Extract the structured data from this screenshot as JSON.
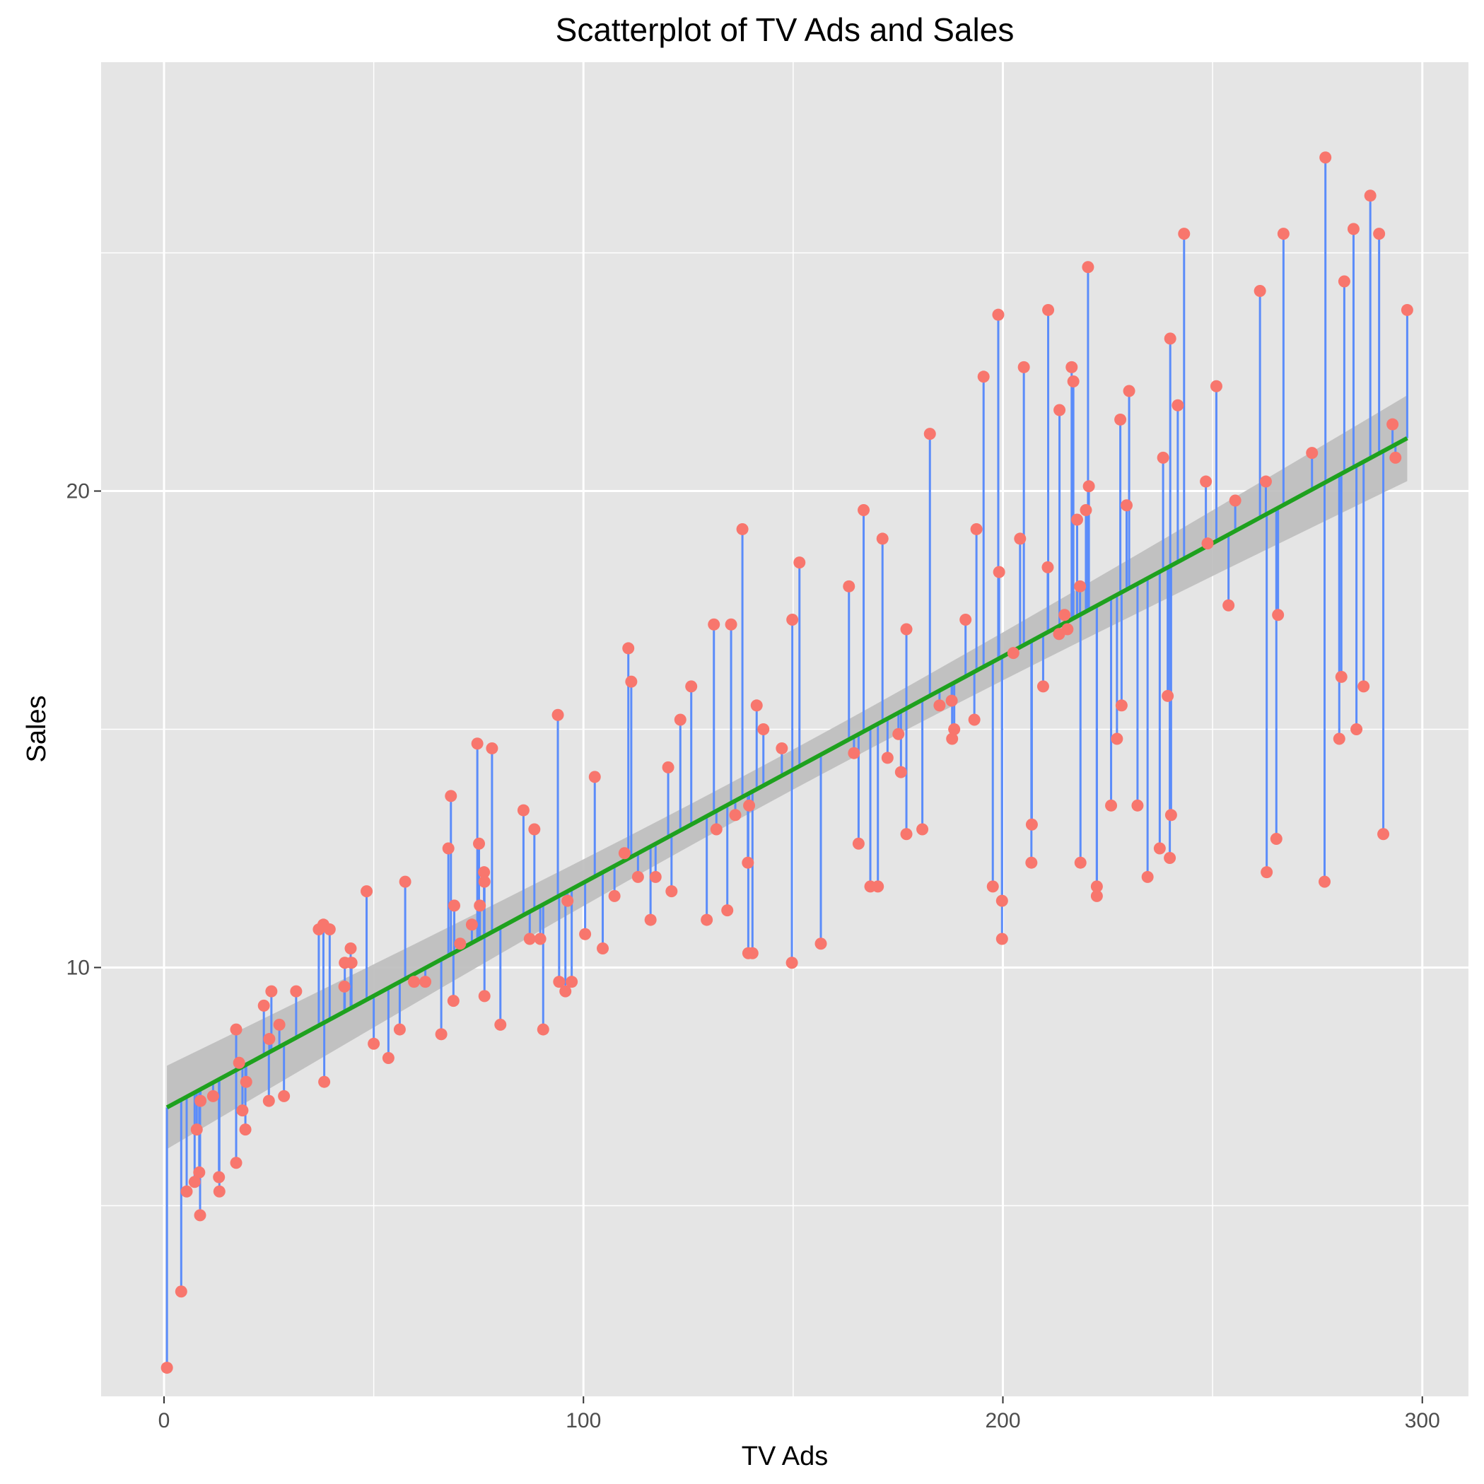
{
  "chart_data": {
    "type": "scatter",
    "title": "Scatterplot of TV Ads and Sales",
    "xlabel": "TV Ads",
    "ylabel": "Sales",
    "xlim": [
      -15,
      311
    ],
    "ylim": [
      1,
      29
    ],
    "xticks": [
      0,
      100,
      200,
      300
    ],
    "yticks": [
      10,
      20
    ],
    "grid": true,
    "background": "#e5e5e5",
    "colors": {
      "points": "#f8766d",
      "residuals": "#5b8cfa",
      "fit": "#1ea11e",
      "ribbon": "#bdbdbd",
      "grid": "#ffffff"
    },
    "fit": {
      "intercept": 7.03,
      "slope": 0.0475,
      "x_range": [
        0.7,
        296.4
      ]
    },
    "ribbon": {
      "lower_start": 6.2,
      "upper_start": 7.95,
      "lower_end": 20.25,
      "upper_end": 22.05
    },
    "points": [
      [
        0.7,
        1.6
      ],
      [
        4.1,
        3.2
      ],
      [
        5.4,
        5.3
      ],
      [
        7.3,
        5.5
      ],
      [
        7.8,
        6.6
      ],
      [
        8.4,
        5.7
      ],
      [
        8.6,
        4.8
      ],
      [
        8.7,
        7.2
      ],
      [
        11.7,
        7.3
      ],
      [
        13.1,
        5.6
      ],
      [
        13.2,
        5.3
      ],
      [
        17.2,
        5.9
      ],
      [
        17.2,
        8.7
      ],
      [
        17.9,
        8.0
      ],
      [
        18.7,
        7.0
      ],
      [
        19.4,
        6.6
      ],
      [
        19.6,
        7.6
      ],
      [
        23.8,
        9.2
      ],
      [
        25.0,
        7.2
      ],
      [
        25.1,
        8.5
      ],
      [
        25.6,
        9.5
      ],
      [
        27.5,
        8.8
      ],
      [
        28.6,
        7.3
      ],
      [
        31.5,
        9.5
      ],
      [
        36.9,
        10.8
      ],
      [
        38.0,
        10.9
      ],
      [
        38.2,
        7.6
      ],
      [
        39.5,
        10.8
      ],
      [
        43.0,
        9.6
      ],
      [
        43.1,
        10.1
      ],
      [
        44.5,
        10.4
      ],
      [
        44.7,
        10.1
      ],
      [
        48.3,
        11.6
      ],
      [
        50.0,
        8.4
      ],
      [
        53.5,
        8.1
      ],
      [
        56.2,
        8.7
      ],
      [
        57.5,
        11.8
      ],
      [
        59.6,
        9.7
      ],
      [
        62.3,
        9.7
      ],
      [
        66.1,
        8.6
      ],
      [
        67.8,
        12.5
      ],
      [
        68.4,
        13.6
      ],
      [
        69.0,
        9.3
      ],
      [
        69.2,
        11.3
      ],
      [
        70.6,
        10.5
      ],
      [
        73.4,
        10.9
      ],
      [
        74.7,
        14.7
      ],
      [
        75.1,
        12.6
      ],
      [
        75.3,
        11.3
      ],
      [
        76.3,
        12.0
      ],
      [
        76.4,
        9.4
      ],
      [
        76.4,
        11.8
      ],
      [
        78.2,
        14.6
      ],
      [
        80.2,
        8.8
      ],
      [
        85.7,
        13.3
      ],
      [
        87.2,
        10.6
      ],
      [
        88.3,
        12.9
      ],
      [
        89.7,
        10.6
      ],
      [
        90.4,
        8.7
      ],
      [
        93.9,
        15.3
      ],
      [
        94.2,
        9.7
      ],
      [
        95.7,
        9.5
      ],
      [
        96.2,
        11.4
      ],
      [
        97.2,
        9.7
      ],
      [
        100.4,
        10.7
      ],
      [
        102.7,
        14.0
      ],
      [
        104.6,
        10.4
      ],
      [
        107.4,
        11.5
      ],
      [
        109.8,
        12.4
      ],
      [
        110.7,
        16.7
      ],
      [
        111.4,
        16.0
      ],
      [
        113.0,
        11.9
      ],
      [
        116.0,
        11.0
      ],
      [
        117.2,
        11.9
      ],
      [
        120.2,
        14.2
      ],
      [
        121.0,
        11.6
      ],
      [
        123.1,
        15.2
      ],
      [
        125.7,
        15.9
      ],
      [
        129.4,
        11.0
      ],
      [
        131.1,
        17.2
      ],
      [
        131.7,
        12.9
      ],
      [
        134.3,
        11.2
      ],
      [
        135.2,
        17.2
      ],
      [
        136.2,
        13.2
      ],
      [
        137.9,
        19.2
      ],
      [
        139.2,
        12.2
      ],
      [
        139.3,
        10.3
      ],
      [
        139.5,
        13.4
      ],
      [
        140.3,
        10.3
      ],
      [
        141.3,
        15.5
      ],
      [
        142.9,
        15.0
      ],
      [
        147.3,
        14.6
      ],
      [
        149.7,
        10.1
      ],
      [
        149.8,
        17.3
      ],
      [
        151.5,
        18.5
      ],
      [
        156.6,
        10.5
      ],
      [
        163.3,
        18.0
      ],
      [
        164.5,
        14.5
      ],
      [
        165.6,
        12.6
      ],
      [
        166.8,
        19.6
      ],
      [
        168.4,
        11.7
      ],
      [
        170.2,
        11.7
      ],
      [
        171.3,
        19.0
      ],
      [
        172.5,
        14.4
      ],
      [
        175.1,
        14.9
      ],
      [
        175.7,
        14.1
      ],
      [
        177.0,
        12.8
      ],
      [
        177.0,
        17.1
      ],
      [
        180.8,
        12.9
      ],
      [
        182.6,
        21.2
      ],
      [
        184.9,
        15.5
      ],
      [
        187.8,
        15.6
      ],
      [
        187.9,
        14.8
      ],
      [
        188.4,
        15.0
      ],
      [
        191.1,
        17.3
      ],
      [
        193.2,
        15.2
      ],
      [
        193.7,
        19.2
      ],
      [
        195.4,
        22.4
      ],
      [
        197.6,
        11.7
      ],
      [
        198.9,
        23.7
      ],
      [
        199.1,
        18.3
      ],
      [
        199.8,
        11.4
      ],
      [
        199.8,
        10.6
      ],
      [
        202.5,
        16.6
      ],
      [
        204.1,
        19.0
      ],
      [
        205.0,
        22.6
      ],
      [
        206.8,
        12.2
      ],
      [
        206.9,
        13.0
      ],
      [
        209.6,
        15.9
      ],
      [
        210.7,
        18.4
      ],
      [
        210.8,
        23.8
      ],
      [
        213.4,
        17.0
      ],
      [
        213.5,
        21.7
      ],
      [
        214.7,
        17.4
      ],
      [
        215.4,
        17.1
      ],
      [
        216.4,
        22.6
      ],
      [
        216.8,
        22.3
      ],
      [
        217.7,
        19.4
      ],
      [
        218.4,
        18.0
      ],
      [
        218.5,
        12.2
      ],
      [
        219.8,
        19.6
      ],
      [
        220.3,
        24.7
      ],
      [
        220.5,
        20.1
      ],
      [
        222.4,
        11.7
      ],
      [
        222.4,
        11.5
      ],
      [
        225.8,
        13.4
      ],
      [
        227.2,
        14.8
      ],
      [
        228.0,
        21.5
      ],
      [
        228.3,
        15.5
      ],
      [
        229.5,
        19.7
      ],
      [
        230.1,
        22.1
      ],
      [
        232.1,
        13.4
      ],
      [
        234.5,
        11.9
      ],
      [
        237.4,
        12.5
      ],
      [
        238.2,
        20.7
      ],
      [
        239.3,
        15.7
      ],
      [
        239.8,
        12.3
      ],
      [
        239.9,
        23.2
      ],
      [
        240.1,
        13.2
      ],
      [
        241.7,
        21.8
      ],
      [
        243.2,
        25.4
      ],
      [
        248.4,
        20.2
      ],
      [
        248.8,
        18.9
      ],
      [
        250.9,
        22.2
      ],
      [
        253.8,
        17.6
      ],
      [
        255.4,
        19.8
      ],
      [
        261.3,
        24.2
      ],
      [
        262.7,
        20.2
      ],
      [
        262.9,
        12.0
      ],
      [
        265.2,
        12.7
      ],
      [
        265.6,
        17.4
      ],
      [
        266.9,
        25.4
      ],
      [
        273.7,
        20.8
      ],
      [
        276.7,
        11.8
      ],
      [
        276.9,
        27.0
      ],
      [
        280.2,
        14.8
      ],
      [
        280.7,
        16.1
      ],
      [
        281.4,
        24.4
      ],
      [
        283.6,
        25.5
      ],
      [
        284.3,
        15.0
      ],
      [
        286.0,
        15.9
      ],
      [
        287.6,
        26.2
      ],
      [
        289.7,
        25.4
      ],
      [
        290.7,
        12.8
      ],
      [
        292.9,
        21.4
      ],
      [
        293.6,
        20.7
      ],
      [
        296.4,
        23.8
      ]
    ]
  }
}
